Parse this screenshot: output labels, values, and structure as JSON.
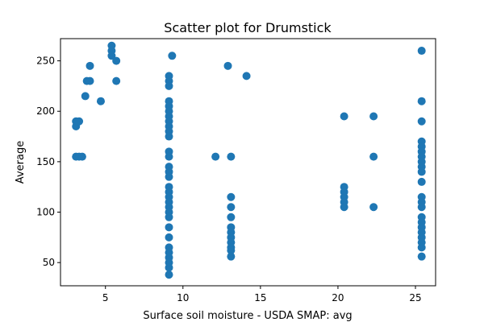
{
  "chart_data": {
    "type": "scatter",
    "title": "Scatter plot for Drumstick",
    "xlabel": "Surface soil moisture - USDA SMAP: avg",
    "ylabel": "Average",
    "xlim": [
      2.1,
      26.3
    ],
    "ylim": [
      27,
      272
    ],
    "xticks": [
      5,
      10,
      15,
      20,
      25
    ],
    "yticks": [
      50,
      100,
      150,
      200,
      250
    ],
    "grid": false,
    "color": "#1f77b4",
    "points": [
      [
        3.1,
        185
      ],
      [
        3.1,
        190
      ],
      [
        3.1,
        155
      ],
      [
        3.3,
        190
      ],
      [
        3.3,
        155
      ],
      [
        3.5,
        155
      ],
      [
        3.7,
        215
      ],
      [
        3.8,
        230
      ],
      [
        4.0,
        230
      ],
      [
        4.0,
        245
      ],
      [
        4.7,
        210
      ],
      [
        5.4,
        265
      ],
      [
        5.4,
        260
      ],
      [
        5.4,
        255
      ],
      [
        5.7,
        250
      ],
      [
        5.7,
        230
      ],
      [
        9.3,
        255
      ],
      [
        9.1,
        235
      ],
      [
        9.1,
        230
      ],
      [
        9.1,
        225
      ],
      [
        9.1,
        210
      ],
      [
        9.1,
        205
      ],
      [
        9.1,
        200
      ],
      [
        9.1,
        195
      ],
      [
        9.1,
        190
      ],
      [
        9.1,
        185
      ],
      [
        9.1,
        180
      ],
      [
        9.1,
        175
      ],
      [
        9.1,
        160
      ],
      [
        9.1,
        155
      ],
      [
        9.1,
        145
      ],
      [
        9.1,
        140
      ],
      [
        9.1,
        135
      ],
      [
        9.1,
        125
      ],
      [
        9.1,
        120
      ],
      [
        9.1,
        115
      ],
      [
        9.1,
        110
      ],
      [
        9.1,
        105
      ],
      [
        9.1,
        100
      ],
      [
        9.1,
        95
      ],
      [
        9.1,
        85
      ],
      [
        9.1,
        75
      ],
      [
        9.1,
        65
      ],
      [
        9.1,
        60
      ],
      [
        9.1,
        55
      ],
      [
        9.1,
        50
      ],
      [
        9.1,
        45
      ],
      [
        9.1,
        38
      ],
      [
        12.1,
        155
      ],
      [
        12.9,
        245
      ],
      [
        13.1,
        155
      ],
      [
        13.1,
        115
      ],
      [
        13.1,
        105
      ],
      [
        13.1,
        95
      ],
      [
        13.1,
        85
      ],
      [
        13.1,
        80
      ],
      [
        13.1,
        75
      ],
      [
        13.1,
        70
      ],
      [
        13.1,
        65
      ],
      [
        13.1,
        62
      ],
      [
        13.1,
        56
      ],
      [
        14.1,
        235
      ],
      [
        20.4,
        195
      ],
      [
        20.4,
        125
      ],
      [
        20.4,
        120
      ],
      [
        20.4,
        115
      ],
      [
        20.4,
        110
      ],
      [
        20.4,
        105
      ],
      [
        22.3,
        195
      ],
      [
        22.3,
        155
      ],
      [
        22.3,
        105
      ],
      [
        25.4,
        260
      ],
      [
        25.4,
        210
      ],
      [
        25.4,
        190
      ],
      [
        25.4,
        170
      ],
      [
        25.4,
        165
      ],
      [
        25.4,
        160
      ],
      [
        25.4,
        155
      ],
      [
        25.4,
        150
      ],
      [
        25.4,
        145
      ],
      [
        25.4,
        140
      ],
      [
        25.4,
        130
      ],
      [
        25.4,
        115
      ],
      [
        25.4,
        110
      ],
      [
        25.4,
        105
      ],
      [
        25.4,
        95
      ],
      [
        25.4,
        90
      ],
      [
        25.4,
        85
      ],
      [
        25.4,
        80
      ],
      [
        25.4,
        75
      ],
      [
        25.4,
        70
      ],
      [
        25.4,
        65
      ],
      [
        25.4,
        56
      ]
    ]
  }
}
